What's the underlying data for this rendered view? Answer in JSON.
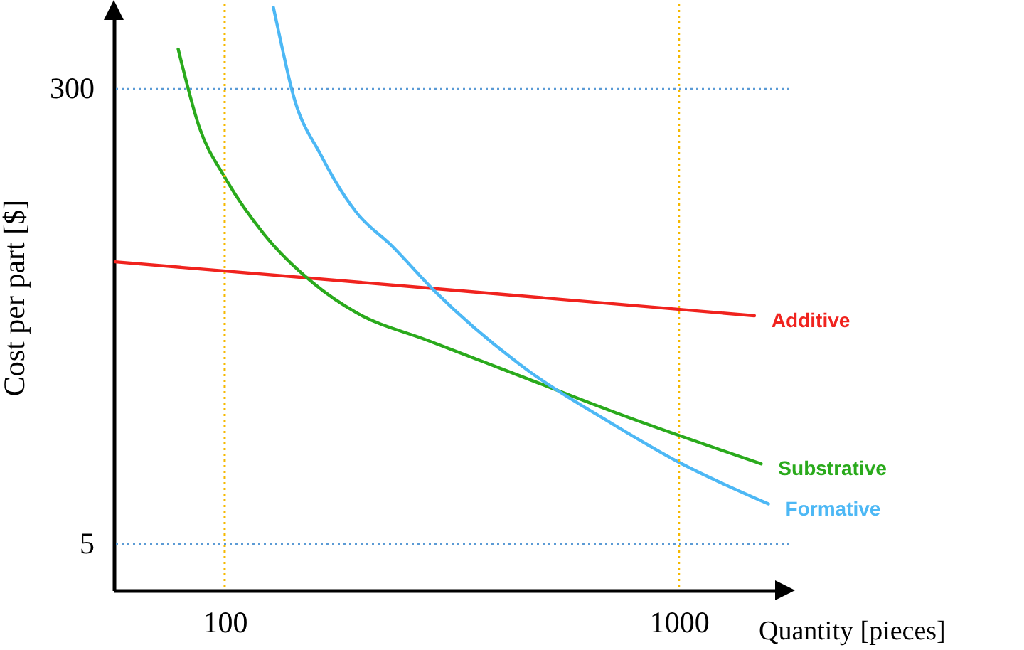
{
  "chart_data": {
    "type": "line",
    "xlabel": "Quantity [pieces]",
    "ylabel": "Cost per part [$]",
    "log": "x",
    "xlim": [
      57,
      1750
    ],
    "ylim": [
      -25,
      355
    ],
    "xticks": [
      100,
      1000
    ],
    "yticks": [
      5,
      300
    ],
    "grid": false,
    "legend": false,
    "marker": "none",
    "line_style": "solid",
    "series": [
      {
        "name": "Additive",
        "color": "#f0231e",
        "x": [
          57.4,
          280,
          1466
        ],
        "values": [
          188,
          171,
          153
        ]
      },
      {
        "name": "Substrative",
        "color": "#2aaa1c",
        "x": [
          79,
          88,
          100,
          122,
          157,
          195,
          280,
          447,
          713,
          1517
        ],
        "values": [
          326,
          275,
          243,
          206,
          174,
          155,
          137,
          114,
          91,
          57
        ]
      },
      {
        "name": "Formative",
        "color": "#4db8f5",
        "x": [
          128,
          134,
          141,
          163,
          195,
          234,
          290,
          463,
          713,
          1000,
          1574
        ],
        "values": [
          353,
          326,
          298,
          257,
          220,
          198,
          169,
          118,
          83,
          58,
          31
        ]
      }
    ],
    "ref_lines": [
      {
        "axis": "y",
        "value": 300,
        "color": "#5b9bd5",
        "line_style": "dotted"
      },
      {
        "axis": "y",
        "value": 5,
        "color": "#5b9bd5",
        "line_style": "dotted"
      },
      {
        "axis": "x",
        "value": 100,
        "color": "#f5b800",
        "line_style": "dotted"
      },
      {
        "axis": "x",
        "value": 1000,
        "color": "#f5b800",
        "line_style": "dotted"
      }
    ]
  }
}
